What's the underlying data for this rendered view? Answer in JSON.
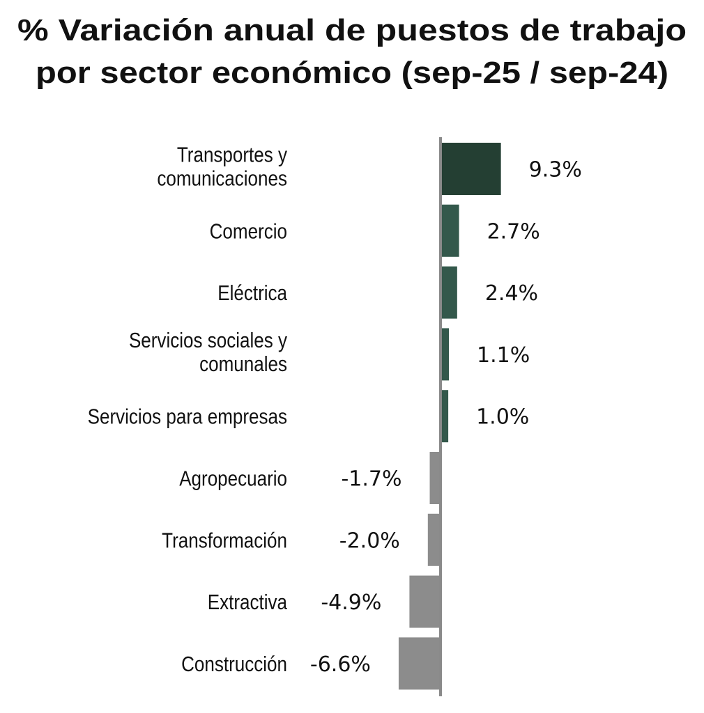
{
  "chart_data": {
    "type": "bar",
    "orientation": "horizontal",
    "title": [
      "% Variación anual de puestos de trabajo",
      "por sector económico (sep-25 / sep-24)"
    ],
    "categories": [
      [
        "Transportes y",
        "comunicaciones"
      ],
      [
        "Comercio"
      ],
      [
        "Eléctrica"
      ],
      [
        "Servicios sociales y",
        "comunales"
      ],
      [
        "Servicios para empresas"
      ],
      [
        "Agropecuario"
      ],
      [
        "Transformación"
      ],
      [
        "Extractiva"
      ],
      [
        "Construcción"
      ]
    ],
    "values": [
      9.3,
      2.7,
      2.4,
      1.1,
      1.0,
      -1.7,
      -2.0,
      -4.9,
      -6.6
    ],
    "labels": [
      "9.3%",
      "2.7%",
      "2.4%",
      "1.1%",
      "1.0%",
      "-1.7%",
      "-2.0%",
      "-4.9%",
      "-6.6%"
    ],
    "xlabel": "",
    "ylabel": "",
    "grid": false,
    "legend": "none",
    "colors": {
      "top": "#243f33",
      "positive": "#33584b",
      "negative": "#8c8c8c",
      "axis": "#8a8a8a"
    }
  }
}
